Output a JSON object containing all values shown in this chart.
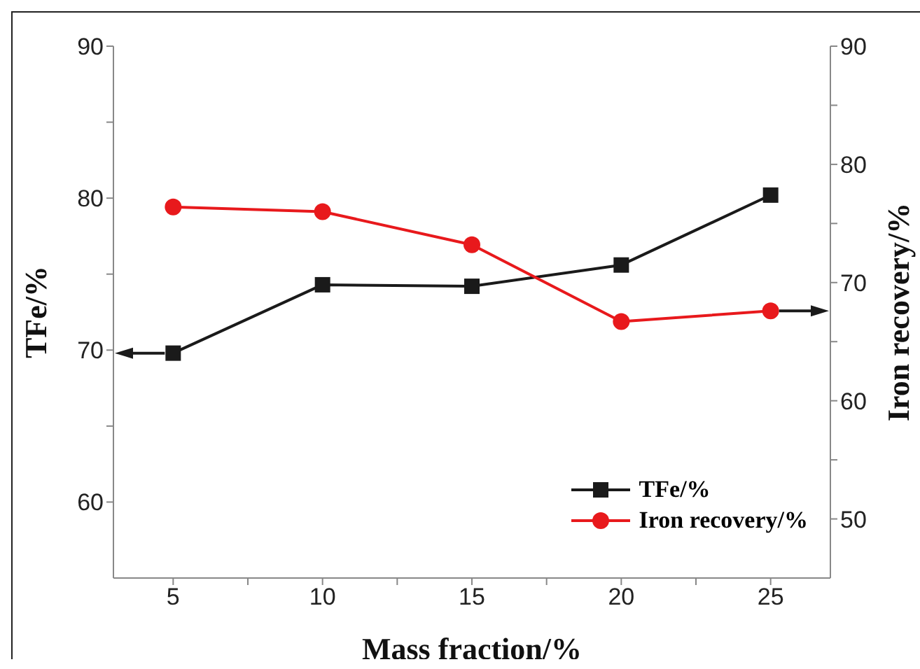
{
  "chart_data": {
    "type": "line",
    "xlabel": "Mass fraction/%",
    "ylabel": "TFe/%",
    "y2label": "Iron recovery/%",
    "x": [
      5,
      10,
      15,
      20,
      25
    ],
    "series": [
      {
        "name": "TFe/%",
        "color": "#1a1a1a",
        "values": [
          69.8,
          74.3,
          74.2,
          75.6,
          80.2
        ],
        "marker": "square"
      },
      {
        "name": "Iron recovery/%",
        "color": "#e8191c",
        "values": [
          76.4,
          76.0,
          73.2,
          66.7,
          67.6
        ],
        "marker": "circle",
        "axis": "y2"
      }
    ],
    "xlim": [
      3,
      27
    ],
    "xticks": [
      5,
      {
        "value": 7.5,
        "label": null
      },
      10,
      {
        "value": 12.5,
        "label": null
      },
      15,
      {
        "value": 17.5,
        "label": null
      },
      20,
      {
        "value": 22.5,
        "label": null
      },
      25
    ],
    "ylim": [
      55,
      90
    ],
    "yticks": [
      60,
      {
        "value": 65,
        "label": null
      },
      70,
      {
        "value": 75,
        "label": null
      },
      80,
      {
        "value": 85,
        "label": null
      },
      90
    ],
    "y2lim": [
      45,
      90
    ],
    "y2ticks": [
      50,
      {
        "value": 55,
        "label": null
      },
      60,
      {
        "value": 65,
        "label": null
      },
      70,
      {
        "value": 75,
        "label": null
      },
      80,
      {
        "value": 85,
        "label": null
      },
      90
    ],
    "legend": "bottom right",
    "grid": false,
    "line_style": "solid"
  }
}
